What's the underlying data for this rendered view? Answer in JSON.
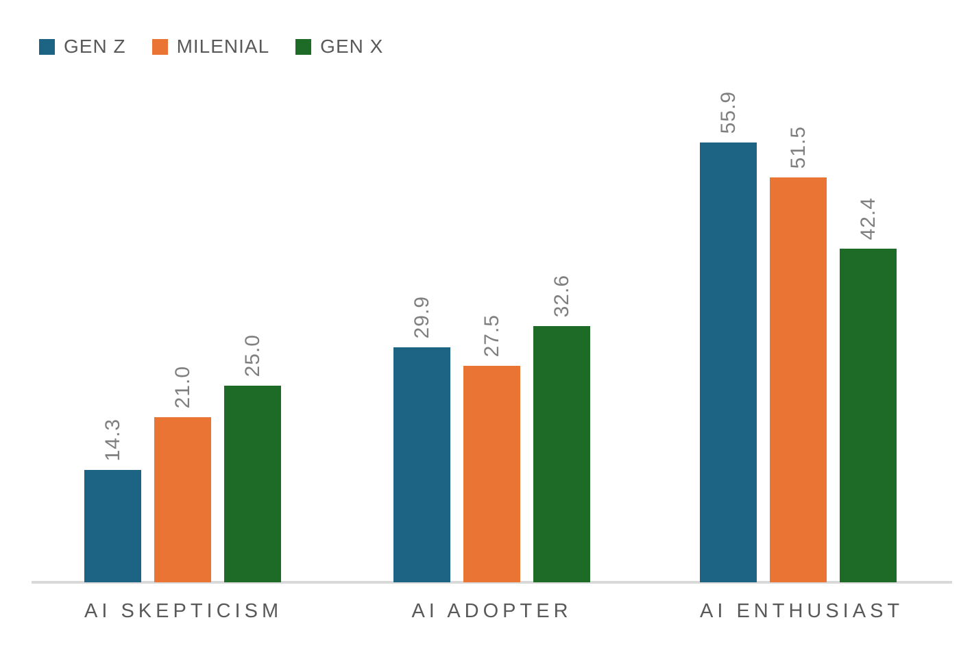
{
  "chart_data": {
    "type": "bar",
    "categories": [
      "AI SKEPTICISM",
      "AI ADOPTER",
      "AI ENTHUSIAST"
    ],
    "series": [
      {
        "name": "GEN Z",
        "color": "#1C6384",
        "values": [
          14.3,
          29.9,
          55.9
        ],
        "labels": [
          "14.3",
          "29.9",
          "55.9"
        ]
      },
      {
        "name": "MILENIAL",
        "color": "#E97433",
        "values": [
          21.0,
          27.5,
          51.5
        ],
        "labels": [
          "21.0",
          "27.5",
          "51.5"
        ]
      },
      {
        "name": "GEN X",
        "color": "#1D6B27",
        "values": [
          25.0,
          32.6,
          42.4
        ],
        "labels": [
          "25.0",
          "32.6",
          "42.4"
        ]
      }
    ],
    "title": "",
    "xlabel": "",
    "ylabel": "",
    "ylim": [
      0,
      60
    ],
    "grid": false,
    "legend_position": "top-left",
    "data_labels": "rotated-90",
    "axis_line_color": "#D9D9D9",
    "category_label_color": "#595959",
    "data_label_color": "#7F7F7F"
  }
}
